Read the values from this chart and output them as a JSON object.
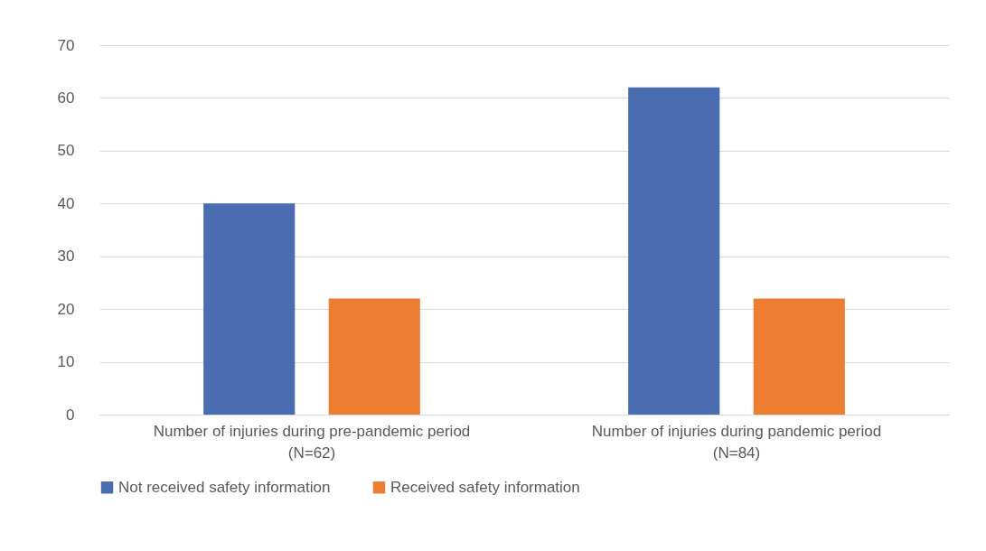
{
  "chart_data": {
    "type": "bar",
    "categories": [
      "Number of injuries during pre-pandemic period\n(N=62)",
      "Number of injuries during pandemic period\n(N=84)"
    ],
    "series": [
      {
        "name": "Not received safety information",
        "color": "#4a6cb0",
        "values": [
          40,
          62
        ]
      },
      {
        "name": "Received safety information",
        "color": "#ed7d31",
        "values": [
          22,
          22
        ]
      }
    ],
    "ylim": [
      0,
      70
    ],
    "yticks": [
      0,
      10,
      20,
      30,
      40,
      50,
      60,
      70
    ],
    "grid": "y",
    "legend": "bottom"
  }
}
